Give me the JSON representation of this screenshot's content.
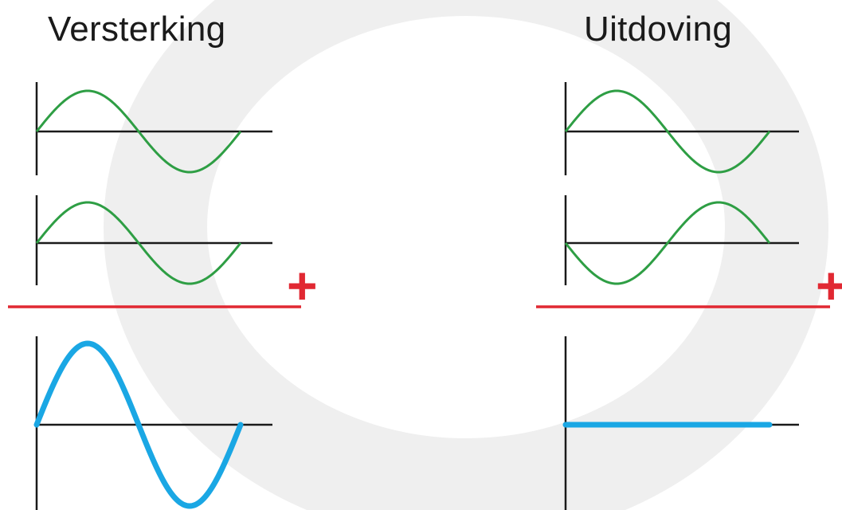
{
  "diagram": {
    "left_title": "Versterking",
    "right_title": "Uitdoving",
    "plus_sign": "+",
    "colors": {
      "input_wave": "#2e9e44",
      "result_wave": "#1aa7e4",
      "sum_line": "#e12832",
      "axis": "#1a1a1a",
      "watermark": "#efefef"
    },
    "left": {
      "wave1": {
        "amplitude": 1,
        "phase": "0"
      },
      "wave2": {
        "amplitude": 1,
        "phase": "0"
      },
      "result": {
        "amplitude": 2,
        "phase": "0"
      }
    },
    "right": {
      "wave1": {
        "amplitude": 1,
        "phase": "0"
      },
      "wave2": {
        "amplitude": 1,
        "phase": "180"
      },
      "result": {
        "amplitude": 0,
        "phase": "0"
      }
    }
  }
}
